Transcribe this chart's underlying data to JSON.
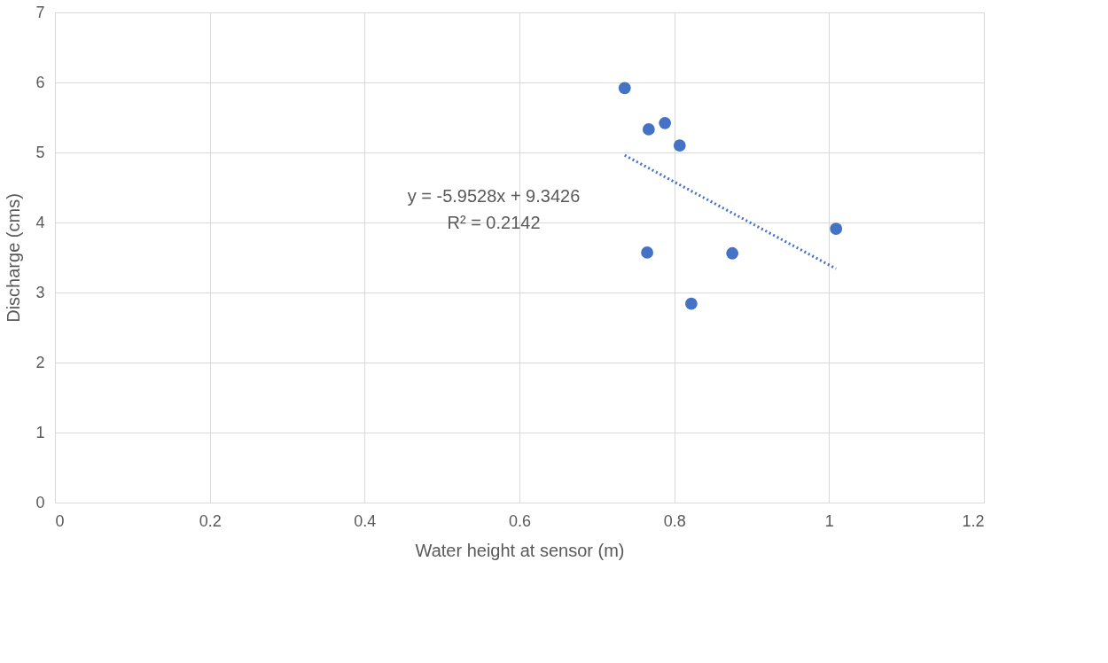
{
  "chart_data": {
    "type": "scatter",
    "xlabel": "Water height at sensor (m)",
    "ylabel": "Discharge (cms)",
    "xlim": [
      0,
      1.2
    ],
    "xticks": [
      0,
      0.2,
      0.4,
      0.6,
      0.8,
      1,
      1.2
    ],
    "ylim": [
      0,
      7
    ],
    "yticks": [
      0,
      1,
      2,
      3,
      4,
      5,
      6,
      7
    ],
    "grid": true,
    "annotations": [
      "y = -5.9528x + 9.3426",
      "R² = 0.2142"
    ],
    "series": [
      {
        "color": "#4472c4",
        "marker": "circle",
        "x": [
          0.736,
          0.767,
          0.788,
          0.807,
          1.009,
          0.765,
          0.875,
          0.822
        ],
        "values": [
          5.92,
          5.33,
          5.42,
          5.1,
          3.91,
          3.57,
          3.56,
          2.84
        ]
      },
      {
        "type": "line",
        "color": "#4472c4",
        "line_style": "dotted",
        "x": [
          0.736,
          1.009
        ],
        "values": [
          4.96,
          3.34
        ]
      }
    ]
  }
}
